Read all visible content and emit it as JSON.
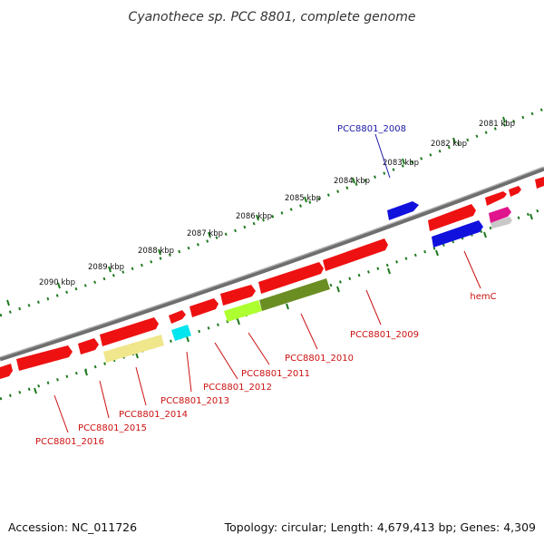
{
  "title": "Cyanothece sp. PCC 8801, complete genome",
  "footer": {
    "accession": "Accession: NC_011726",
    "summary": "Topology: circular; Length: 4,679,413 bp; Genes: 4,309"
  },
  "scale_ticks": [
    "2081 kbp",
    "2082 kbp",
    "2083 kbp",
    "2084 kbp",
    "2085 kbp",
    "2086 kbp",
    "2087 kbp",
    "2088 kbp",
    "2089 kbp",
    "2090 kbp"
  ],
  "gene_labels": [
    {
      "label": "PCC8801_2008",
      "color": "#1a1aa6"
    },
    {
      "label": "hemC",
      "color": "#cc1111"
    },
    {
      "label": "PCC8801_2009",
      "color": "#cc1111"
    },
    {
      "label": "PCC8801_2010",
      "color": "#cc1111"
    },
    {
      "label": "PCC8801_2011",
      "color": "#cc1111"
    },
    {
      "label": "PCC8801_2012",
      "color": "#cc1111"
    },
    {
      "label": "PCC8801_2013",
      "color": "#cc1111"
    },
    {
      "label": "PCC8801_2014",
      "color": "#cc1111"
    },
    {
      "label": "PCC8801_2015",
      "color": "#cc1111"
    },
    {
      "label": "PCC8801_2016",
      "color": "#cc1111"
    }
  ],
  "colors": {
    "backbone": "#7a7a7a",
    "tick": "#1f7a1f",
    "gene_red": "#ee1111",
    "gene_blue": "#1111dd",
    "gene_olive": "#6b8e23",
    "gene_lime": "#adff2f",
    "gene_khaki": "#f0e68c",
    "gene_cyan": "#00e5ee",
    "gene_pink": "#e0148c"
  }
}
